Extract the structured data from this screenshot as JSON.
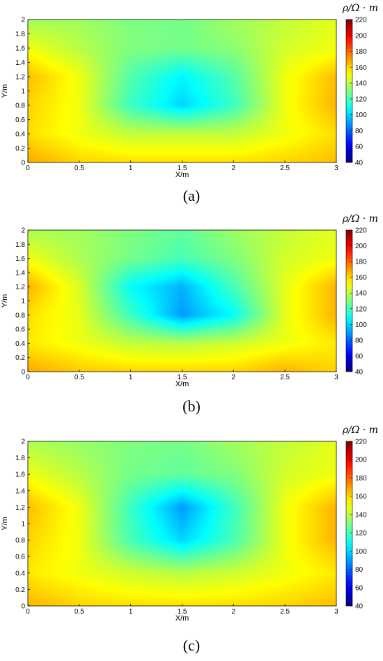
{
  "chart_data": [
    {
      "type": "heatmap",
      "caption": "(a)",
      "xlabel": "X/m",
      "ylabel": "Y/m",
      "colorbar_label": "ρ/Ω · m",
      "xlim": [
        0,
        3
      ],
      "ylim": [
        0,
        2
      ],
      "x_ticks": [
        "0",
        "0.5",
        "1",
        "1.5",
        "2",
        "2.5",
        "3"
      ],
      "y_ticks": [
        "0",
        "0.2",
        "0.4",
        "0.6",
        "0.8",
        "1",
        "1.2",
        "1.4",
        "1.6",
        "1.8",
        "2"
      ],
      "colorbar": {
        "min": 40,
        "max": 220,
        "ticks": [
          "40",
          "60",
          "80",
          "100",
          "120",
          "140",
          "160",
          "180",
          "200",
          "220"
        ]
      },
      "x": [
        0,
        0.5,
        1,
        1.5,
        2,
        2.5,
        3
      ],
      "y": [
        0,
        0.4,
        0.8,
        1.2,
        1.6,
        2
      ],
      "values": [
        [
          168,
          160,
          158,
          158,
          158,
          160,
          164
        ],
        [
          158,
          150,
          142,
          142,
          142,
          150,
          158
        ],
        [
          160,
          150,
          118,
          100,
          118,
          150,
          166
        ],
        [
          164,
          150,
          122,
          106,
          122,
          150,
          164
        ],
        [
          150,
          140,
          130,
          128,
          132,
          145,
          150
        ],
        [
          136,
          136,
          130,
          128,
          136,
          142,
          148
        ]
      ]
    },
    {
      "type": "heatmap",
      "caption": "(b)",
      "xlabel": "X/m",
      "ylabel": "Y/m",
      "colorbar_label": "ρ/Ω · m",
      "xlim": [
        0,
        3
      ],
      "ylim": [
        0,
        2
      ],
      "x_ticks": [
        "0",
        "0.5",
        "1",
        "1.5",
        "2",
        "2.5",
        "3"
      ],
      "y_ticks": [
        "0",
        "0.2",
        "0.4",
        "0.6",
        "0.8",
        "1",
        "1.2",
        "1.4",
        "1.6",
        "1.8",
        "2"
      ],
      "colorbar": {
        "min": 40,
        "max": 220,
        "ticks": [
          "40",
          "60",
          "80",
          "100",
          "120",
          "140",
          "160",
          "180",
          "200",
          "220"
        ]
      },
      "x": [
        0,
        0.5,
        1,
        1.5,
        2,
        2.5,
        3
      ],
      "y": [
        0,
        0.4,
        0.8,
        1.2,
        1.6,
        2
      ],
      "values": [
        [
          168,
          162,
          160,
          160,
          160,
          166,
          160
        ],
        [
          156,
          150,
          142,
          140,
          144,
          150,
          156
        ],
        [
          158,
          148,
          118,
          90,
          108,
          148,
          166
        ],
        [
          166,
          146,
          108,
          94,
          120,
          148,
          166
        ],
        [
          150,
          138,
          128,
          120,
          130,
          145,
          150
        ],
        [
          138,
          136,
          130,
          125,
          135,
          142,
          148
        ]
      ]
    },
    {
      "type": "heatmap",
      "caption": "(c)",
      "xlabel": "X/m",
      "ylabel": "Y/m",
      "colorbar_label": "ρ/Ω · m",
      "xlim": [
        0,
        3
      ],
      "ylim": [
        0,
        2
      ],
      "x_ticks": [
        "0",
        "0.5",
        "1",
        "1.5",
        "2",
        "2.5",
        "3"
      ],
      "y_ticks": [
        "0",
        "0.2",
        "0.4",
        "0.6",
        "0.8",
        "1",
        "1.2",
        "1.4",
        "1.6",
        "1.8",
        "2"
      ],
      "colorbar": {
        "min": 40,
        "max": 220,
        "ticks": [
          "40",
          "60",
          "80",
          "100",
          "120",
          "140",
          "160",
          "180",
          "200",
          "220"
        ]
      },
      "x": [
        0,
        0.5,
        1,
        1.5,
        2,
        2.5,
        3
      ],
      "y": [
        0,
        0.4,
        0.8,
        1.2,
        1.6,
        2
      ],
      "values": [
        [
          166,
          160,
          158,
          158,
          158,
          160,
          164
        ],
        [
          156,
          150,
          144,
          140,
          144,
          150,
          156
        ],
        [
          160,
          150,
          120,
          100,
          120,
          150,
          166
        ],
        [
          164,
          150,
          118,
          90,
          118,
          150,
          166
        ],
        [
          150,
          140,
          128,
          125,
          130,
          145,
          150
        ],
        [
          138,
          134,
          130,
          128,
          136,
          142,
          148
        ]
      ]
    }
  ]
}
